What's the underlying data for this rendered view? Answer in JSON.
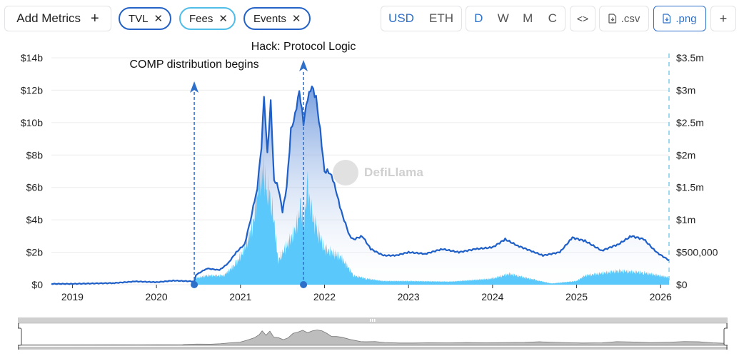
{
  "toolbar": {
    "add_metrics": {
      "label": "Add Metrics",
      "icon": "plus-icon",
      "glyph": "+"
    },
    "metric_pills": [
      {
        "label": "TVL",
        "close_glyph": "✕",
        "color": "#2563c7"
      },
      {
        "label": "Fees",
        "close_glyph": "✕",
        "color": "#50bde8"
      },
      {
        "label": "Events",
        "close_glyph": "✕",
        "color": "#2563c7"
      }
    ],
    "currency": {
      "options": [
        "USD",
        "ETH"
      ],
      "selected": "USD"
    },
    "period": {
      "options": [
        "D",
        "W",
        "M",
        "C"
      ],
      "selected": "D"
    },
    "embed": {
      "glyph": "<>",
      "icon": "code-icon"
    },
    "csv": {
      "label": ".csv",
      "icon": "file-download-icon"
    },
    "png": {
      "label": ".png",
      "icon": "file-download-icon"
    },
    "add": {
      "glyph": "+"
    }
  },
  "watermark": {
    "text": "DefiLlama"
  },
  "colors": {
    "tvl_line": "#1f5fc8",
    "fees_area": "#5ac8fa",
    "event_marker": "#2e6fc9",
    "grid": "#ececec"
  },
  "chart_data": {
    "type": "line",
    "title": "",
    "xlabel": "",
    "x_ticks": [
      "2019",
      "2020",
      "2021",
      "2022",
      "2023",
      "2024",
      "2025",
      "2026"
    ],
    "y_left": {
      "label": "TVL",
      "ticks": [
        "$0",
        "$2b",
        "$4b",
        "$6b",
        "$8b",
        "$10b",
        "$12b",
        "$14b"
      ],
      "range": [
        0,
        14000000000
      ]
    },
    "y_right": {
      "label": "Fees",
      "ticks": [
        "$0",
        "$500,000",
        "$1m",
        "$1.5m",
        "$2m",
        "$2.5m",
        "$3m",
        "$3.5m"
      ],
      "range": [
        0,
        3500000
      ]
    },
    "series": [
      {
        "name": "TVL",
        "type": "line",
        "axis": "left",
        "x": [
          2018.75,
          2019.0,
          2019.5,
          2019.75,
          2020.0,
          2020.2,
          2020.45,
          2020.47,
          2020.6,
          2020.75,
          2020.85,
          2020.95,
          2021.05,
          2021.12,
          2021.2,
          2021.25,
          2021.28,
          2021.32,
          2021.36,
          2021.4,
          2021.45,
          2021.5,
          2021.55,
          2021.6,
          2021.65,
          2021.7,
          2021.75,
          2021.8,
          2021.85,
          2021.9,
          2021.95,
          2022.0,
          2022.05,
          2022.1,
          2022.15,
          2022.2,
          2022.3,
          2022.35,
          2022.45,
          2022.55,
          2022.7,
          2022.85,
          2023.0,
          2023.2,
          2023.4,
          2023.6,
          2023.8,
          2024.0,
          2024.15,
          2024.3,
          2024.5,
          2024.6,
          2024.8,
          2024.95,
          2025.1,
          2025.3,
          2025.5,
          2025.65,
          2025.8,
          2025.95,
          2026.1
        ],
        "values": [
          0.05,
          0.05,
          0.1,
          0.2,
          0.15,
          0.25,
          0.2,
          0.6,
          1.0,
          0.9,
          1.3,
          2.0,
          2.5,
          4.0,
          6.0,
          8.5,
          11.5,
          8.0,
          11.3,
          6.5,
          6.0,
          4.5,
          6.0,
          9.5,
          10.5,
          12.0,
          10.0,
          11.5,
          12.2,
          11.5,
          9.5,
          7.0,
          7.0,
          6.5,
          5.5,
          4.5,
          3.0,
          2.8,
          3.0,
          2.2,
          1.8,
          1.8,
          2.0,
          1.9,
          2.2,
          2.0,
          2.2,
          2.3,
          2.8,
          2.4,
          2.0,
          1.8,
          2.0,
          2.9,
          2.7,
          2.1,
          2.5,
          3.0,
          2.8,
          2.0,
          1.5
        ]
      },
      {
        "name": "Fees",
        "type": "area",
        "axis": "right",
        "x": [
          2020.45,
          2020.6,
          2020.8,
          2020.95,
          2021.05,
          2021.15,
          2021.22,
          2021.27,
          2021.32,
          2021.37,
          2021.45,
          2021.55,
          2021.65,
          2021.72,
          2021.75,
          2021.8,
          2021.85,
          2021.9,
          2022.0,
          2022.2,
          2022.35,
          2022.5,
          2022.7,
          2023.0,
          2023.5,
          2024.0,
          2024.2,
          2024.5,
          2024.7,
          2025.0,
          2025.1,
          2025.5,
          2025.8,
          2026.1
        ],
        "values": [
          100000,
          150000,
          150000,
          350000,
          600000,
          1000000,
          1700000,
          1900000,
          1600000,
          1400000,
          400000,
          650000,
          900000,
          1300000,
          1000000,
          1600000,
          1150000,
          950000,
          600000,
          450000,
          150000,
          100000,
          60000,
          60000,
          50000,
          100000,
          180000,
          80000,
          20000,
          60000,
          150000,
          230000,
          200000,
          120000
        ]
      }
    ],
    "annotations": [
      {
        "label": "COMP distribution begins",
        "x": 2020.45
      },
      {
        "label": "Hack: Protocol Logic",
        "x": 2021.75
      }
    ],
    "grid": true,
    "legend": "none"
  }
}
